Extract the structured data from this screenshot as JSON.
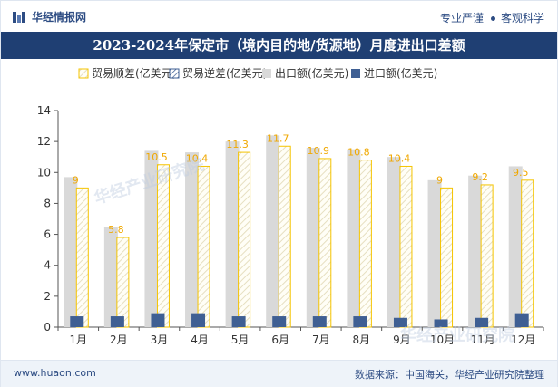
{
  "brand": {
    "name": "华经情报网"
  },
  "tagline": {
    "left": "专业严谨",
    "right": "客观科学"
  },
  "title": "2023-2024年保定市（境内目的地/货源地）月度进出口差额",
  "footer": {
    "website": "www.huaon.com",
    "source": "数据来源：中国海关，华经产业研究院整理"
  },
  "watermark": {
    "text": "华经产业研究院",
    "url": "www.huaon.com"
  },
  "colors": {
    "export": "#d9d9d9",
    "import": "#3f5f93",
    "surplus": "#f5c400",
    "deficit": "#3f5f93",
    "label": "#f0a800"
  },
  "chart_data": {
    "type": "bar",
    "categories": [
      "1月",
      "2月",
      "3月",
      "4月",
      "5月",
      "6月",
      "7月",
      "8月",
      "9月",
      "10月",
      "11月",
      "12月"
    ],
    "series": [
      {
        "name": "贸易顺差(亿美元)",
        "kind": "surplus",
        "values": [
          9,
          5.8,
          10.5,
          10.4,
          11.3,
          11.7,
          10.9,
          10.8,
          10.4,
          9,
          9.2,
          9.5
        ]
      },
      {
        "name": "贸易逆差(亿美元)",
        "kind": "deficit",
        "values": [
          0,
          0,
          0,
          0,
          0,
          0,
          0,
          0,
          0,
          0,
          0,
          0
        ]
      },
      {
        "name": "出口额(亿美元)",
        "kind": "export",
        "values": [
          9.7,
          6.5,
          11.4,
          11.3,
          12.0,
          12.4,
          11.6,
          11.5,
          11.0,
          9.5,
          9.8,
          10.4
        ]
      },
      {
        "name": "进口额(亿美元)",
        "kind": "import",
        "values": [
          0.7,
          0.7,
          0.9,
          0.9,
          0.7,
          0.7,
          0.7,
          0.7,
          0.6,
          0.5,
          0.6,
          0.9
        ]
      }
    ],
    "data_labels": [
      "9",
      "5.8",
      "10.5",
      "10.4",
      "11.3",
      "11.7",
      "10.9",
      "10.8",
      "10.4",
      "9",
      "9.2",
      "9.5"
    ],
    "y_ticks": [
      "0",
      "2",
      "4",
      "6",
      "8",
      "10",
      "12",
      "14"
    ],
    "ylim": [
      0,
      14
    ],
    "grid": false,
    "legend_position": "top"
  }
}
